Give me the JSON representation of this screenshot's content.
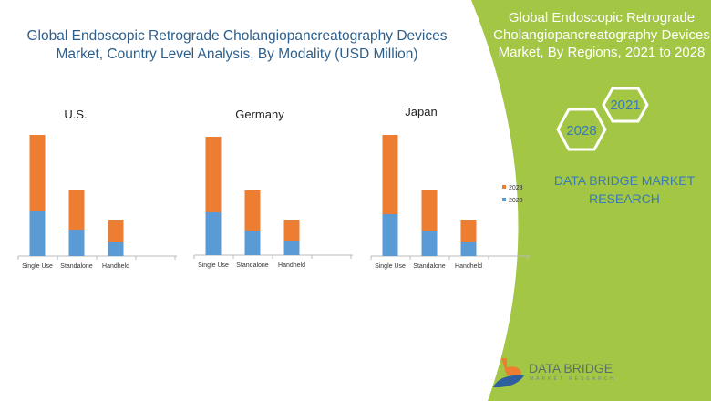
{
  "header": {
    "title": "Global Endoscopic Retrograde Cholangiopancreatography Devices Market, Country Level Analysis, By Modality (USD Million)"
  },
  "side_panel": {
    "title": "Global Endoscopic Retrograde Cholangiopancreatography Devices Market, By Regions, 2021 to 2028",
    "hex_labels": [
      "2021",
      "2028"
    ],
    "brand": "DATA BRIDGE MARKET RESEARCH",
    "logo_text": "DATA BRIDGE",
    "logo_sub": "MARKET RESEARCH",
    "color": "#a3c644"
  },
  "chart_data": [
    {
      "type": "bar",
      "stacked": true,
      "title": "U.S.",
      "categories": [
        "Single Use",
        "Standalone",
        "Handheld"
      ],
      "series": [
        {
          "name": "2020",
          "color": "#5b9bd5",
          "values": [
            49,
            29,
            16
          ]
        },
        {
          "name": "2028",
          "color": "#ed7d31",
          "values": [
            84,
            44,
            24
          ]
        }
      ],
      "note": "relative units; no y-axis printed"
    },
    {
      "type": "bar",
      "stacked": true,
      "title": "Germany",
      "categories": [
        "Single Use",
        "Standalone",
        "Handheld"
      ],
      "series": [
        {
          "name": "2020",
          "color": "#5b9bd5",
          "values": [
            47,
            27,
            16
          ]
        },
        {
          "name": "2028",
          "color": "#ed7d31",
          "values": [
            83,
            44,
            23
          ]
        }
      ]
    },
    {
      "type": "bar",
      "stacked": true,
      "title": "Japan",
      "categories": [
        "Single Use",
        "Standalone",
        "Handheld"
      ],
      "series": [
        {
          "name": "2020",
          "color": "#5b9bd5",
          "values": [
            46,
            28,
            16
          ]
        },
        {
          "name": "2028",
          "color": "#ed7d31",
          "values": [
            87,
            45,
            24
          ]
        }
      ],
      "legend": "right"
    }
  ]
}
